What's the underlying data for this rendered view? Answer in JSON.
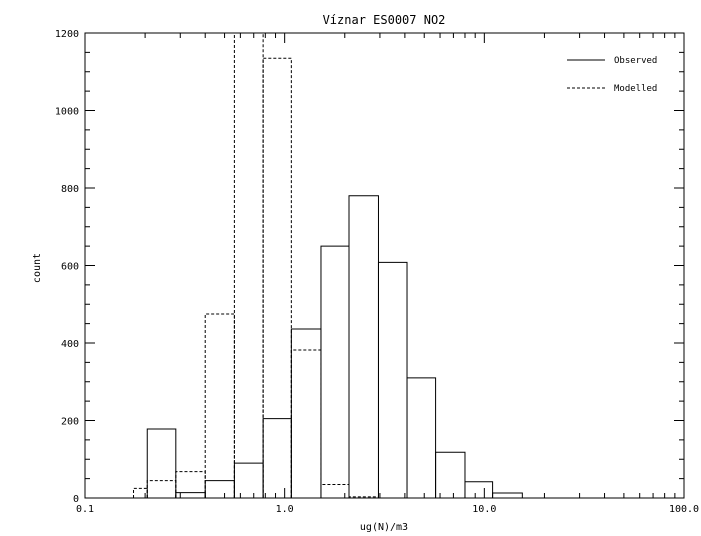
{
  "chart_data": {
    "type": "histogram",
    "title": "Víznar ES0007 NO2",
    "xlabel": "ug(N)/m3",
    "ylabel": "count",
    "x_scale": "log",
    "xlim": [
      0.1,
      100.0
    ],
    "ylim": [
      0,
      1200
    ],
    "x_ticks": [
      "0.1",
      "1.0",
      "10.0",
      "100.0"
    ],
    "y_ticks": [
      "0",
      "200",
      "400",
      "600",
      "800",
      "1000",
      "1200"
    ],
    "legend_position": "top-right",
    "series": [
      {
        "name": "Observed",
        "line_style": "solid",
        "color": "#000000",
        "bins": [
          {
            "from": 0.205,
            "to": 0.285,
            "count": 178
          },
          {
            "from": 0.285,
            "to": 0.4,
            "count": 14
          },
          {
            "from": 0.4,
            "to": 0.56,
            "count": 45
          },
          {
            "from": 0.56,
            "to": 0.78,
            "count": 90
          },
          {
            "from": 0.78,
            "to": 1.08,
            "count": 205
          },
          {
            "from": 1.08,
            "to": 1.52,
            "count": 436
          },
          {
            "from": 1.52,
            "to": 2.1,
            "count": 650
          },
          {
            "from": 2.1,
            "to": 2.95,
            "count": 780
          },
          {
            "from": 2.95,
            "to": 4.1,
            "count": 608
          },
          {
            "from": 4.1,
            "to": 5.7,
            "count": 310
          },
          {
            "from": 5.7,
            "to": 8.0,
            "count": 118
          },
          {
            "from": 8.0,
            "to": 11.0,
            "count": 42
          },
          {
            "from": 11.0,
            "to": 15.5,
            "count": 13
          }
        ]
      },
      {
        "name": "Modelled",
        "line_style": "dashed",
        "color": "#000000",
        "bins": [
          {
            "from": 0.175,
            "to": 0.205,
            "count": 25
          },
          {
            "from": 0.205,
            "to": 0.285,
            "count": 45
          },
          {
            "from": 0.285,
            "to": 0.4,
            "count": 68
          },
          {
            "from": 0.4,
            "to": 0.56,
            "count": 475
          },
          {
            "from": 0.56,
            "to": 0.78,
            "count": 1200
          },
          {
            "from": 0.78,
            "to": 1.08,
            "count": 1135
          },
          {
            "from": 1.08,
            "to": 1.52,
            "count": 382
          },
          {
            "from": 1.52,
            "to": 2.1,
            "count": 35
          },
          {
            "from": 2.1,
            "to": 2.95,
            "count": 3
          }
        ]
      }
    ]
  }
}
